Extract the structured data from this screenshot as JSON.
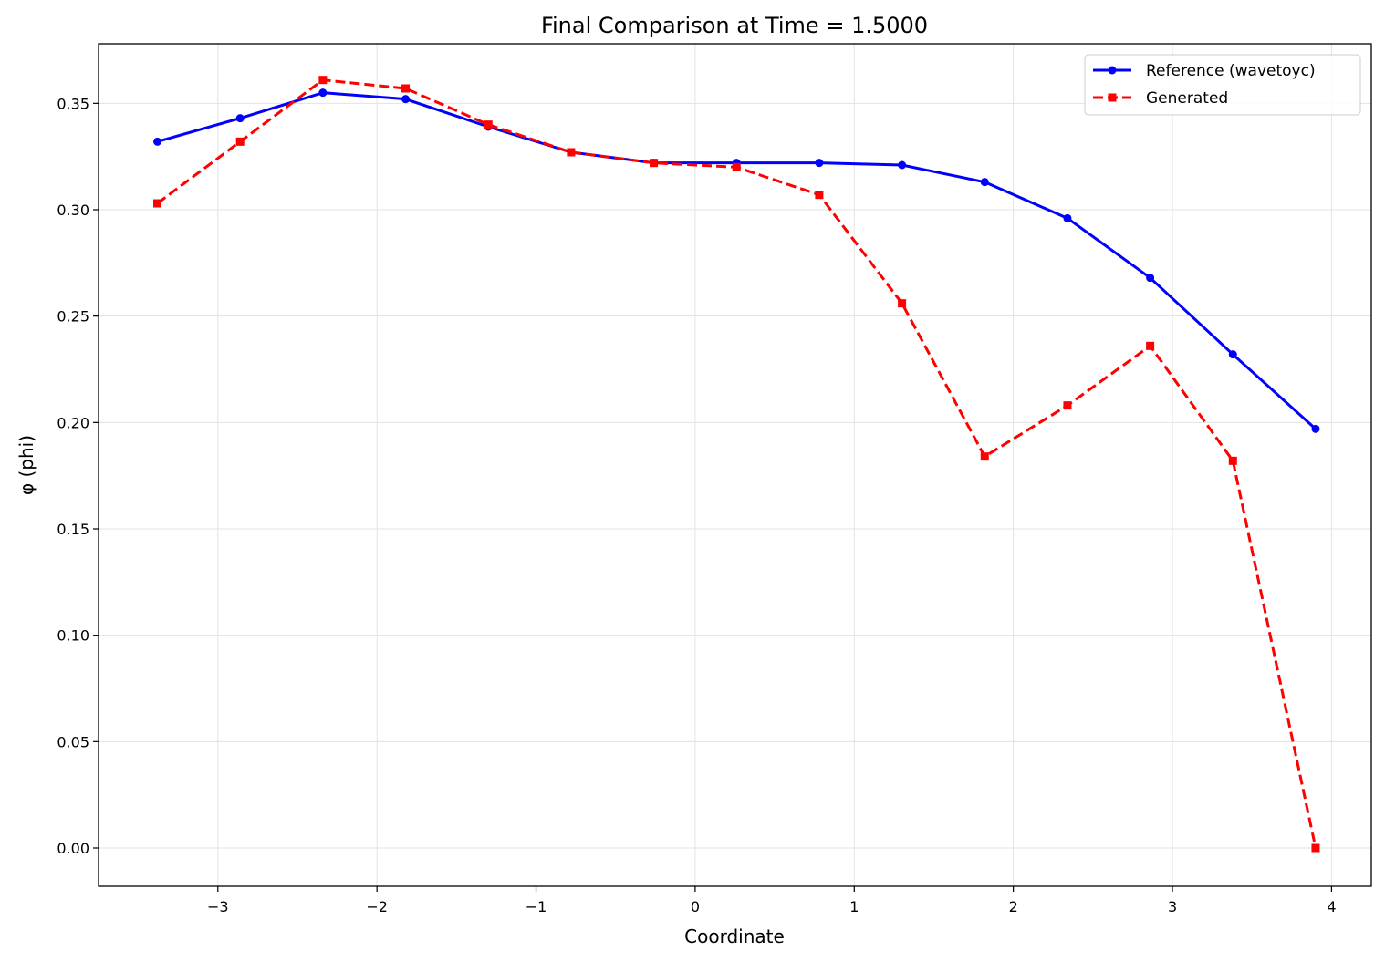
{
  "chart_data": {
    "type": "line",
    "title": "Final Comparison at Time = 1.5000",
    "xlabel": "Coordinate",
    "ylabel": "φ (phi)",
    "xlim": [
      -3.75,
      4.25
    ],
    "ylim": [
      -0.018,
      0.378
    ],
    "xticks": [
      -3,
      -2,
      -1,
      0,
      1,
      2,
      3,
      4
    ],
    "xtick_labels": [
      "−3",
      "−2",
      "−1",
      "0",
      "1",
      "2",
      "3",
      "4"
    ],
    "yticks": [
      0.0,
      0.05,
      0.1,
      0.15,
      0.2,
      0.25,
      0.3,
      0.35
    ],
    "ytick_labels": [
      "0.00",
      "0.05",
      "0.10",
      "0.15",
      "0.20",
      "0.25",
      "0.30",
      "0.35"
    ],
    "grid": true,
    "legend_position": "top-right",
    "x": [
      -3.38,
      -2.86,
      -2.34,
      -1.82,
      -1.3,
      -0.78,
      -0.26,
      0.26,
      0.78,
      1.3,
      1.82,
      2.34,
      2.86,
      3.38,
      3.9
    ],
    "series": [
      {
        "name": "Reference (wavetoyc)",
        "color": "#0000ff",
        "style": "solid",
        "marker": "circle",
        "values": [
          0.332,
          0.343,
          0.355,
          0.352,
          0.339,
          0.327,
          0.322,
          0.322,
          0.322,
          0.321,
          0.313,
          0.296,
          0.268,
          0.232,
          0.197
        ]
      },
      {
        "name": "Generated",
        "color": "#ff0000",
        "style": "dashed",
        "marker": "square",
        "values": [
          0.303,
          0.332,
          0.361,
          0.357,
          0.34,
          0.327,
          0.322,
          0.32,
          0.307,
          0.256,
          0.184,
          0.208,
          0.236,
          0.182,
          0.0
        ]
      }
    ]
  }
}
